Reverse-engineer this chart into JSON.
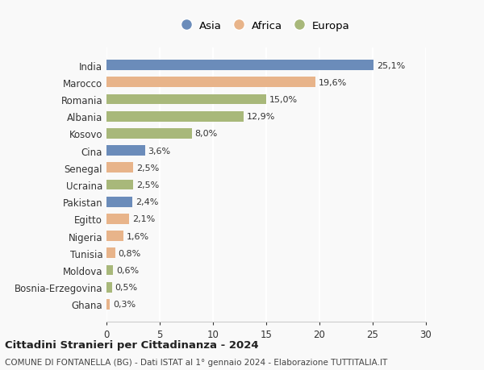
{
  "countries": [
    "India",
    "Marocco",
    "Romania",
    "Albania",
    "Kosovo",
    "Cina",
    "Senegal",
    "Ucraina",
    "Pakistan",
    "Egitto",
    "Nigeria",
    "Tunisia",
    "Moldova",
    "Bosnia-Erzegovina",
    "Ghana"
  ],
  "values": [
    25.1,
    19.6,
    15.0,
    12.9,
    8.0,
    3.6,
    2.5,
    2.5,
    2.4,
    2.1,
    1.6,
    0.8,
    0.6,
    0.5,
    0.3
  ],
  "labels": [
    "25,1%",
    "19,6%",
    "15,0%",
    "12,9%",
    "8,0%",
    "3,6%",
    "2,5%",
    "2,5%",
    "2,4%",
    "2,1%",
    "1,6%",
    "0,8%",
    "0,6%",
    "0,5%",
    "0,3%"
  ],
  "colors": [
    "#6b8cba",
    "#e8b48a",
    "#a8b87a",
    "#a8b87a",
    "#a8b87a",
    "#6b8cba",
    "#e8b48a",
    "#a8b87a",
    "#6b8cba",
    "#e8b48a",
    "#e8b48a",
    "#e8b48a",
    "#a8b87a",
    "#a8b87a",
    "#e8b48a"
  ],
  "legend_colors": {
    "Asia": "#6b8cba",
    "Africa": "#e8b48a",
    "Europa": "#a8b87a"
  },
  "title1": "Cittadini Stranieri per Cittadinanza - 2024",
  "title2": "COMUNE DI FONTANELLA (BG) - Dati ISTAT al 1° gennaio 2024 - Elaborazione TUTTITALIA.IT",
  "xlim": [
    0,
    30
  ],
  "xticks": [
    0,
    5,
    10,
    15,
    20,
    25,
    30
  ],
  "background_color": "#f9f9f9",
  "grid_color": "#ffffff"
}
